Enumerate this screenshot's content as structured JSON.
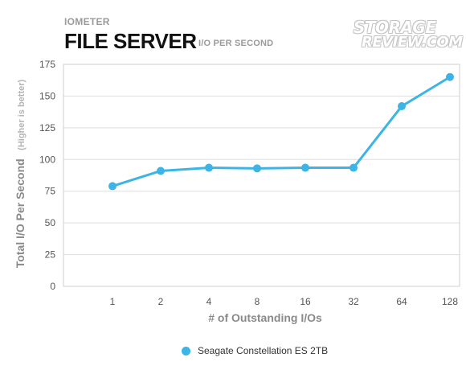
{
  "header": {
    "kicker": "IOMETER",
    "title": "FILE SERVER",
    "subtitle": "I/O PER SECOND",
    "logo_line1": "STORAGE",
    "logo_line2": "REVIEW.COM"
  },
  "colors": {
    "series": "#3cb4e5",
    "grid": "#dddddd",
    "axis_text": "#555555",
    "axis_label": "#8a8a8a"
  },
  "chart_data": {
    "type": "line",
    "categories": [
      "1",
      "2",
      "4",
      "8",
      "16",
      "32",
      "64",
      "128"
    ],
    "series": [
      {
        "name": "Seagate Constellation ES 2TB",
        "values": [
          79,
          91,
          93.5,
          93,
          93.5,
          93.5,
          142,
          165
        ]
      }
    ],
    "xlabel": "# of Outstanding I/Os",
    "ylabel": "Total I/O Per Second",
    "ylabel_note": "(Higher is better)",
    "ylim": [
      0,
      175
    ],
    "yticks": [
      0,
      25,
      50,
      75,
      100,
      125,
      150,
      175
    ],
    "grid": "horizontal",
    "legend_position": "bottom"
  }
}
